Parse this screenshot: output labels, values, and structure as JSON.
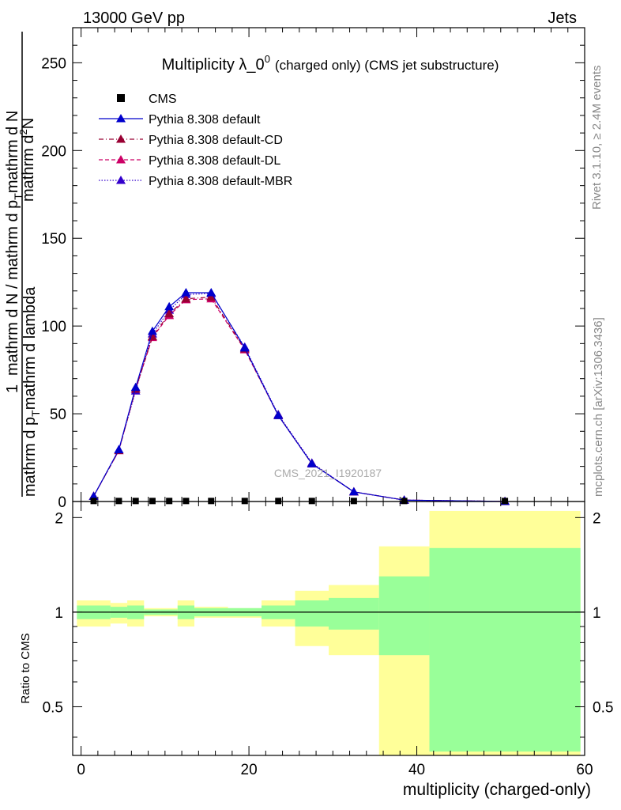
{
  "header": {
    "left": "13000 GeV pp",
    "right": "Jets"
  },
  "side_labels": {
    "rivet": "Rivet 3.1.10, ≥ 2.4M events",
    "mcplots": "mcplots.cern.ch [arXiv:1306.3436]"
  },
  "watermark": "CMS_2021_I1920187",
  "colors": {
    "data": "#000000",
    "default": "#0000cc",
    "cd": "#990033",
    "dl": "#cc0066",
    "mbr": "#3300cc",
    "band_outer": "#ffff99",
    "band_inner": "#99ff99"
  },
  "chart_data": [
    {
      "type": "line",
      "title_main": "Multiplicity λ_0",
      "title_sup": "0",
      "title_rest": "(charged only) (CMS jet substructure)",
      "ylabel_numerator_prefix": "1",
      "ylabel_main": "mathrm d N / mathrm d p",
      "ylabel_sub1": "T",
      "ylabel_main2": "mathrm d N",
      "ylabel_top": "mathrm d",
      "ylabel_top_sup": "2",
      "ylabel_top2": "N",
      "ylabel_denominator": "mathrm d p",
      "ylabel_sub2": "T",
      "ylabel_denominator2": "mathrm d lambda",
      "xlim": [
        -1,
        60
      ],
      "ylim": [
        0,
        270
      ],
      "yticks": [
        0,
        50,
        100,
        150,
        200,
        250
      ],
      "ytick_labels": [
        "0",
        "50",
        "100",
        "150",
        "200",
        "250"
      ],
      "legend_position": "top-left",
      "series": [
        {
          "name": "CMS",
          "style": "data",
          "x": [
            1.5,
            4.5,
            6.5,
            8.5,
            10.5,
            12.5,
            15.5,
            19.5,
            23.5,
            27.5,
            32.5,
            38.5,
            50.5
          ],
          "y": [
            0.3,
            0.3,
            0.3,
            0.3,
            0.3,
            0.3,
            0.3,
            0.3,
            0.3,
            0.3,
            0.3,
            0.3,
            0.3
          ]
        },
        {
          "name": "Pythia 8.308 default",
          "style": "solid",
          "color_key": "default",
          "x": [
            1.5,
            4.5,
            6.5,
            8.5,
            10.5,
            12.5,
            15.5,
            19.5,
            23.5,
            27.5,
            32.5,
            38.5,
            50.5
          ],
          "y": [
            3,
            29.5,
            65,
            97,
            111,
            119,
            119,
            87.5,
            49,
            21.5,
            5.5,
            0.8,
            0.05
          ]
        },
        {
          "name": "Pythia 8.308 default-CD",
          "style": "dashdot",
          "color_key": "cd",
          "x": [
            1.5,
            4.5,
            6.5,
            8.5,
            10.5,
            12.5,
            15.5,
            19.5,
            23.5,
            27.5,
            32.5,
            38.5,
            50.5
          ],
          "y": [
            3,
            29,
            64,
            94,
            107,
            115.5,
            116.5,
            87,
            49,
            21.5,
            5.5,
            0.8,
            0.05
          ]
        },
        {
          "name": "Pythia 8.308 default-DL",
          "style": "dashed",
          "color_key": "dl",
          "x": [
            1.5,
            4.5,
            6.5,
            8.5,
            10.5,
            12.5,
            15.5,
            19.5,
            23.5,
            27.5,
            32.5,
            38.5,
            50.5
          ],
          "y": [
            3,
            29,
            64,
            93.5,
            106,
            115,
            115.5,
            86.5,
            49,
            21.5,
            5.5,
            0.8,
            0.05
          ]
        },
        {
          "name": "Pythia 8.308 default-MBR",
          "style": "dotted",
          "color_key": "mbr",
          "x": [
            1.5,
            4.5,
            6.5,
            8.5,
            10.5,
            12.5,
            15.5,
            19.5,
            23.5,
            27.5,
            32.5,
            38.5,
            50.5
          ],
          "y": [
            3,
            29.5,
            63,
            95.5,
            109,
            118,
            118.5,
            88,
            49.5,
            22,
            5.5,
            0.8,
            0.05
          ]
        }
      ]
    },
    {
      "type": "area",
      "ylabel": "Ratio to CMS",
      "xlabel": "multiplicity (charged-only)",
      "xlim": [
        -1,
        60
      ],
      "ylim": [
        0.35,
        2.25
      ],
      "xticks": [
        0,
        20,
        40,
        60
      ],
      "xtick_labels": [
        "0",
        "20",
        "40",
        "60"
      ],
      "yticks": [
        0.5,
        1,
        2
      ],
      "ytick_labels": [
        "0.5",
        "1",
        "2"
      ],
      "bins": [
        {
          "x0": -0.5,
          "x1": 3.5,
          "inner": [
            0.95,
            1.05
          ],
          "outer": [
            0.9,
            1.09
          ]
        },
        {
          "x0": 3.5,
          "x1": 5.5,
          "inner": [
            0.96,
            1.04
          ],
          "outer": [
            0.92,
            1.07
          ]
        },
        {
          "x0": 5.5,
          "x1": 7.5,
          "inner": [
            0.95,
            1.05
          ],
          "outer": [
            0.9,
            1.09
          ]
        },
        {
          "x0": 7.5,
          "x1": 9.5,
          "inner": [
            0.98,
            1.02
          ],
          "outer": [
            0.97,
            1.03
          ]
        },
        {
          "x0": 9.5,
          "x1": 11.5,
          "inner": [
            0.98,
            1.02
          ],
          "outer": [
            0.97,
            1.03
          ]
        },
        {
          "x0": 11.5,
          "x1": 13.5,
          "inner": [
            0.95,
            1.05
          ],
          "outer": [
            0.9,
            1.09
          ]
        },
        {
          "x0": 13.5,
          "x1": 17.5,
          "inner": [
            0.97,
            1.03
          ],
          "outer": [
            0.96,
            1.04
          ]
        },
        {
          "x0": 17.5,
          "x1": 21.5,
          "inner": [
            0.97,
            1.03
          ],
          "outer": [
            0.96,
            1.03
          ]
        },
        {
          "x0": 21.5,
          "x1": 25.5,
          "inner": [
            0.95,
            1.05
          ],
          "outer": [
            0.9,
            1.09
          ]
        },
        {
          "x0": 25.5,
          "x1": 29.5,
          "inner": [
            0.9,
            1.09
          ],
          "outer": [
            0.78,
            1.17
          ]
        },
        {
          "x0": 29.5,
          "x1": 35.5,
          "inner": [
            0.88,
            1.11
          ],
          "outer": [
            0.73,
            1.22
          ]
        },
        {
          "x0": 35.5,
          "x1": 41.5,
          "inner": [
            0.73,
            1.3
          ],
          "outer": [
            0.35,
            1.62
          ]
        },
        {
          "x0": 41.5,
          "x1": 59.5,
          "inner": [
            0.36,
            1.6
          ],
          "outer": [
            0.35,
            2.1
          ]
        }
      ]
    }
  ]
}
